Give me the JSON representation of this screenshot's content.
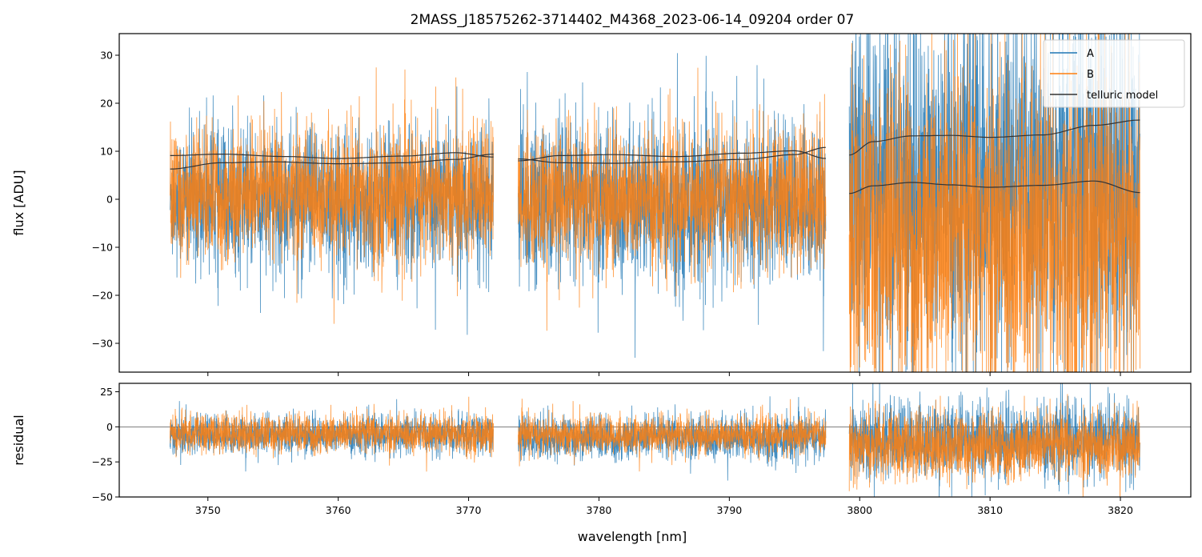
{
  "chart_data": {
    "type": "line",
    "title": "2MASS_J18575262-3714402_M4368_2023-06-14_09204  order 07",
    "xlabel": "wavelength [nm]",
    "xlim": [
      3743.2,
      3825.4
    ],
    "xticks": [
      3750,
      3760,
      3770,
      3780,
      3790,
      3800,
      3810,
      3820
    ],
    "colors": {
      "A": "#1f77b4",
      "B": "#ff7f0e",
      "telluric": "#333333"
    },
    "legend_position": "top-right",
    "segments": [
      [
        3747.1,
        3771.9
      ],
      [
        3773.8,
        3797.4
      ],
      [
        3799.2,
        3821.5
      ]
    ],
    "panels": [
      {
        "name": "flux",
        "ylabel": "flux [ADU]",
        "ylim": [
          -36,
          34.5
        ],
        "yticks": [
          -30,
          -20,
          -10,
          0,
          10,
          20,
          30
        ],
        "series": [
          {
            "name": "A",
            "color": "#1f77b4",
            "noise_segments": [
              {
                "x": [
                  3747.1,
                  3771.9
                ],
                "center": 0,
                "spread": 8.5
              },
              {
                "x": [
                  3773.8,
                  3797.4
                ],
                "center": -1,
                "spread": 9.5
              },
              {
                "name_ok": true,
                "x": [
                  3799.2,
                  3821.5
                ],
                "center": 2,
                "spread": 22
              }
            ]
          },
          {
            "name": "B",
            "color": "#ff7f0e",
            "noise_segments": [
              {
                "x": [
                  3747.1,
                  3771.9
                ],
                "center": 1,
                "spread": 8
              },
              {
                "x": [
                  3773.8,
                  3797.4
                ],
                "center": 0,
                "spread": 8.5
              },
              {
                "x": [
                  3799.2,
                  3821.5
                ],
                "center": -8,
                "spread": 20
              }
            ]
          },
          {
            "name": "telluric model",
            "color": "#333333",
            "curves": [
              {
                "x": [
                  3747.1,
                  3751,
                  3755,
                  3760,
                  3765,
                  3769,
                  3771.9
                ],
                "y": [
                  6.3,
                  7.6,
                  7.8,
                  7.4,
                  7.6,
                  8.3,
                  9.4
                ]
              },
              {
                "x": [
                  3747.1,
                  3751,
                  3756,
                  3760,
                  3765,
                  3769,
                  3771.9
                ],
                "y": [
                  9.1,
                  9.4,
                  8.9,
                  8.5,
                  9.0,
                  9.7,
                  8.8
                ]
              },
              {
                "x": [
                  3773.8,
                  3777,
                  3781,
                  3786,
                  3791,
                  3795,
                  3797.4
                ],
                "y": [
                  8.4,
                  7.6,
                  7.5,
                  7.8,
                  8.3,
                  9.3,
                  10.8
                ]
              },
              {
                "x": [
                  3773.8,
                  3777,
                  3781,
                  3786,
                  3791,
                  3795,
                  3797.4
                ],
                "y": [
                  8.0,
                  9.1,
                  9.3,
                  8.9,
                  9.6,
                  10.1,
                  8.5
                ]
              },
              {
                "x": [
                  3799.2,
                  3801,
                  3804,
                  3807,
                  3810,
                  3814,
                  3818,
                  3821.5
                ],
                "y": [
                  9.2,
                  12.0,
                  13.2,
                  13.3,
                  12.9,
                  13.4,
                  15.4,
                  16.5
                ]
              },
              {
                "x": [
                  3799.2,
                  3801,
                  3804,
                  3807,
                  3810,
                  3814,
                  3818,
                  3821.5
                ],
                "y": [
                  1.2,
                  2.8,
                  3.5,
                  3.0,
                  2.5,
                  2.9,
                  3.8,
                  1.4
                ]
              }
            ]
          }
        ]
      },
      {
        "name": "residual",
        "ylabel": "residual",
        "ylim": [
          -50,
          31
        ],
        "yticks": [
          -50,
          -25,
          0,
          25
        ],
        "zero_line": 0,
        "series": [
          {
            "name": "A",
            "color": "#1f77b4",
            "noise_segments": [
              {
                "x": [
                  3747.1,
                  3771.9
                ],
                "center": -6,
                "spread": 8
              },
              {
                "x": [
                  3773.8,
                  3797.4
                ],
                "center": -8,
                "spread": 9
              },
              {
                "x": [
                  3799.2,
                  3821.5
                ],
                "center": -10,
                "spread": 16
              }
            ]
          },
          {
            "name": "B",
            "color": "#ff7f0e",
            "noise_segments": [
              {
                "x": [
                  3747.1,
                  3771.9
                ],
                "center": -5,
                "spread": 8
              },
              {
                "x": [
                  3773.8,
                  3797.4
                ],
                "center": -6,
                "spread": 8
              },
              {
                "x": [
                  3799.2,
                  3821.5
                ],
                "center": -14,
                "spread": 14
              }
            ]
          }
        ]
      }
    ],
    "legend": [
      "A",
      "B",
      "telluric model"
    ]
  }
}
